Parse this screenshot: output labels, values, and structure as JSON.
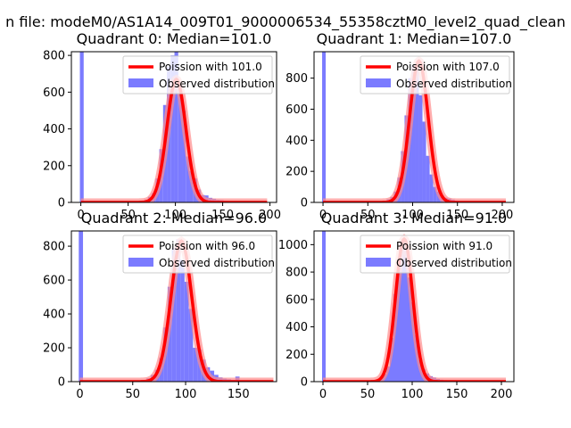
{
  "figure": {
    "suptitle": "n file: modeM0/AS1A14_009T01_9000006534_55358cztM0_level2_quad_clean",
    "colors": {
      "hist": "#7b7bff",
      "poisson": "#ff0000",
      "poisson_glow": "#ff8c8c",
      "axes": "#000000"
    }
  },
  "chart_data": [
    {
      "type": "bar",
      "title": "Quadrant 0: Median=101.0",
      "legend": {
        "placement": "top-right",
        "entries": [
          "Poission with 101.0",
          "Observed distribution"
        ]
      },
      "xlim": [
        -10,
        207
      ],
      "ylim": [
        0,
        820
      ],
      "xticks": [
        0,
        50,
        100,
        150,
        200
      ],
      "xtick_labels": [
        "0",
        "50",
        "100",
        "150",
        "200"
      ],
      "yticks": [
        0,
        200,
        400,
        600,
        800
      ],
      "ytick_labels": [
        "0",
        "200",
        "400",
        "600",
        "800"
      ],
      "series": [
        {
          "name": "Observed distribution",
          "bin_width": 4,
          "bin_starts": [
            -1,
            63,
            67,
            71,
            75,
            79,
            83,
            87,
            91,
            95,
            99,
            103,
            107,
            111,
            115,
            119,
            123,
            127,
            131,
            135,
            139,
            143,
            147,
            151,
            155,
            159,
            163,
            167
          ],
          "values": [
            830,
            10,
            15,
            30,
            50,
            130,
            290,
            530,
            740,
            800,
            820,
            640,
            500,
            250,
            170,
            130,
            70,
            40,
            38,
            25,
            20,
            14,
            12,
            8,
            6,
            4,
            3,
            2
          ]
        },
        {
          "name": "Poission with 101.0",
          "type": "line",
          "mean": 101.0,
          "peak": 670,
          "x_range": [
            0,
            197
          ]
        }
      ]
    },
    {
      "type": "bar",
      "title": "Quadrant 1: Median=107.0",
      "legend": {
        "placement": "top-right",
        "entries": [
          "Poission with 107.0",
          "Observed distribution"
        ]
      },
      "xlim": [
        -10,
        213
      ],
      "ylim": [
        0,
        970
      ],
      "xticks": [
        0,
        50,
        100,
        150,
        200
      ],
      "xtick_labels": [
        "0",
        "50",
        "100",
        "150",
        "200"
      ],
      "yticks": [
        0,
        200,
        400,
        600,
        800
      ],
      "ytick_labels": [
        "0",
        "200",
        "400",
        "600",
        "800"
      ],
      "series": [
        {
          "name": "Observed distribution",
          "bin_width": 4,
          "bin_starts": [
            -1,
            67,
            71,
            75,
            79,
            83,
            87,
            91,
            95,
            99,
            103,
            107,
            111,
            115,
            119,
            123,
            127,
            131,
            135,
            139,
            143,
            147,
            151,
            155,
            159,
            163,
            167,
            171
          ],
          "values": [
            975,
            10,
            20,
            35,
            70,
            160,
            330,
            560,
            800,
            880,
            890,
            690,
            520,
            300,
            180,
            100,
            70,
            45,
            30,
            25,
            18,
            12,
            8,
            6,
            4,
            3,
            2,
            2
          ]
        },
        {
          "name": "Poission with 107.0",
          "type": "line",
          "mean": 107.0,
          "peak": 910,
          "x_range": [
            0,
            204
          ]
        }
      ]
    },
    {
      "type": "bar",
      "title": "Quadrant 2: Median=96.0",
      "legend": {
        "placement": "top-right",
        "entries": [
          "Poission with 96.0",
          "Observed distribution"
        ]
      },
      "xlim": [
        -8,
        186
      ],
      "ylim": [
        0,
        890
      ],
      "xticks": [
        0,
        50,
        100,
        150
      ],
      "xtick_labels": [
        "0",
        "50",
        "100",
        "150"
      ],
      "yticks": [
        0,
        200,
        400,
        600,
        800
      ],
      "ytick_labels": [
        "0",
        "200",
        "400",
        "600",
        "800"
      ],
      "series": [
        {
          "name": "Observed distribution",
          "bin_width": 4,
          "bin_starts": [
            -1,
            59,
            63,
            67,
            71,
            75,
            79,
            83,
            87,
            91,
            95,
            99,
            103,
            107,
            111,
            115,
            119,
            123,
            127,
            131,
            135,
            139,
            143,
            147,
            151,
            155,
            159
          ],
          "values": [
            900,
            10,
            20,
            40,
            70,
            140,
            320,
            560,
            790,
            840,
            720,
            590,
            430,
            200,
            190,
            130,
            85,
            65,
            40,
            25,
            18,
            14,
            10,
            30,
            6,
            4,
            3
          ]
        },
        {
          "name": "Poission with 96.0",
          "type": "line",
          "mean": 96.0,
          "peak": 830,
          "x_range": [
            0,
            183
          ]
        }
      ]
    },
    {
      "type": "bar",
      "title": "Quadrant 3: Median=91.0",
      "legend": {
        "placement": "top-right",
        "entries": [
          "Poission with 91.0",
          "Observed distribution"
        ]
      },
      "xlim": [
        -10,
        214
      ],
      "ylim": [
        0,
        1100
      ],
      "xticks": [
        0,
        50,
        100,
        150,
        200
      ],
      "xtick_labels": [
        "0",
        "50",
        "100",
        "150",
        "200"
      ],
      "yticks": [
        0,
        200,
        400,
        600,
        800,
        1000
      ],
      "ytick_labels": [
        "0",
        "200",
        "400",
        "600",
        "800",
        "1000"
      ],
      "series": [
        {
          "name": "Observed distribution",
          "bin_width": 4,
          "bin_starts": [
            -1,
            59,
            63,
            67,
            71,
            75,
            79,
            83,
            87,
            91,
            95,
            99,
            103,
            107,
            111,
            115,
            119,
            123,
            127,
            131,
            135,
            139,
            143,
            147,
            151,
            155
          ],
          "values": [
            1100,
            10,
            25,
            55,
            110,
            320,
            640,
            900,
            1030,
            980,
            760,
            580,
            340,
            160,
            90,
            60,
            40,
            30,
            20,
            14,
            10,
            8,
            6,
            4,
            3,
            2
          ]
        },
        {
          "name": "Poission with 91.0",
          "type": "line",
          "mean": 91.0,
          "peak": 1040,
          "x_range": [
            0,
            205
          ]
        }
      ]
    }
  ]
}
